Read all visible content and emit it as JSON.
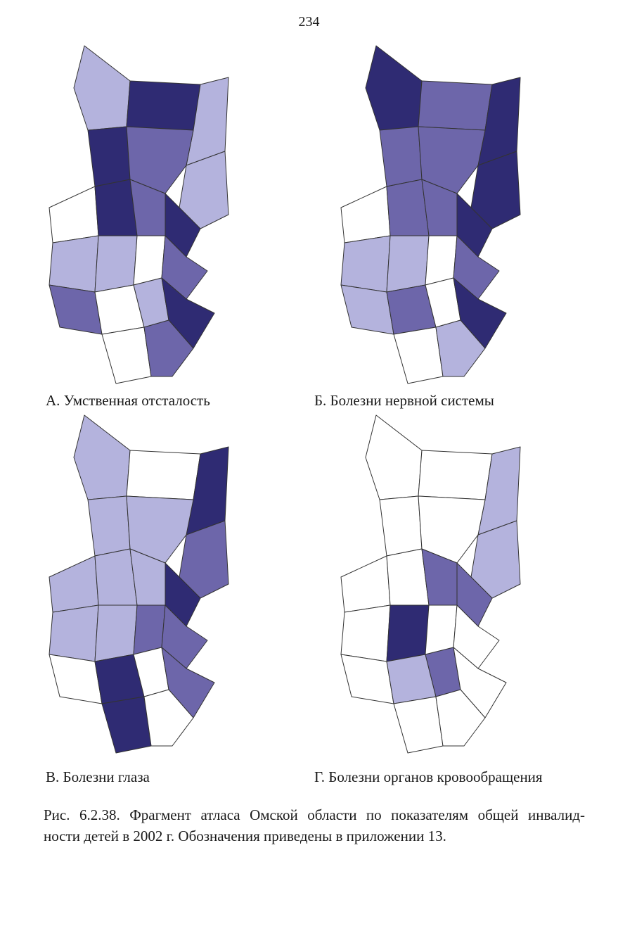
{
  "page_number": "234",
  "maps": [
    {
      "caption": "А. Умственная отсталость"
    },
    {
      "caption": "Б. Болезни нервной системы"
    },
    {
      "caption": "В. Болезни глаза"
    },
    {
      "caption": "Г. Болезни органов кровообращения"
    }
  ],
  "figure_caption": {
    "lines": [
      "Рис. 6.2.38. Фрагмент атласа Омской области по показателям общей инвалид-",
      "ности детей в 2002 г. Обозначения приведены в приложении 13."
    ]
  }
}
